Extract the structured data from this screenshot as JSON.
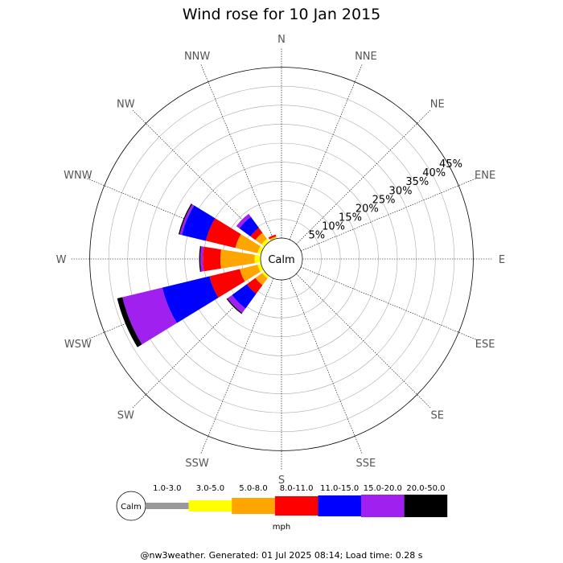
{
  "chart_data": {
    "type": "wind-rose",
    "title": "Wind rose for 10 Jan 2015",
    "directions": [
      "N",
      "NNE",
      "NE",
      "ENE",
      "E",
      "ESE",
      "SE",
      "SSE",
      "S",
      "SSW",
      "SW",
      "WSW",
      "W",
      "WNW",
      "NW",
      "NNW"
    ],
    "ring_labels": [
      "5%",
      "10%",
      "15%",
      "20%",
      "25%",
      "30%",
      "35%",
      "40%",
      "45%"
    ],
    "rlim": [
      0,
      50
    ],
    "calm_label": "Calm",
    "unit": "mph",
    "speed_bins": [
      {
        "label": "1.0-3.0",
        "color": "#999999"
      },
      {
        "label": "3.0-5.0",
        "color": "#ffff00"
      },
      {
        "label": "5.0-8.0",
        "color": "#ffa500"
      },
      {
        "label": "8.0-11.0",
        "color": "#ff0000"
      },
      {
        "label": "11.0-15.0",
        "color": "#0000ff"
      },
      {
        "label": "15.0-20.0",
        "color": "#a020f0"
      },
      {
        "label": "20.0-50.0",
        "color": "#000000"
      }
    ],
    "series": [
      {
        "direction": "SW",
        "values": [
          0,
          0.8,
          2.2,
          2.8,
          4.8,
          1.5,
          0.3
        ]
      },
      {
        "direction": "WSW",
        "values": [
          0,
          1.0,
          4.8,
          8.2,
          12.8,
          10.8,
          1.4
        ]
      },
      {
        "direction": "W",
        "values": [
          0,
          1.6,
          9.0,
          4.6,
          0,
          0.7,
          0.3
        ]
      },
      {
        "direction": "WNW",
        "values": [
          0,
          1.0,
          6.0,
          8.0,
          6.5,
          0.6,
          0.3
        ]
      },
      {
        "direction": "NW",
        "values": [
          0,
          1.0,
          2.0,
          1.6,
          3.6,
          1.0,
          0
        ]
      },
      {
        "direction": "NNW",
        "values": [
          0,
          0.3,
          0.3,
          0.5,
          0,
          0,
          0
        ]
      }
    ]
  },
  "footer": "@nw3weather. Generated: 01 Jul 2025 08:14; Load time: 0.28 s"
}
